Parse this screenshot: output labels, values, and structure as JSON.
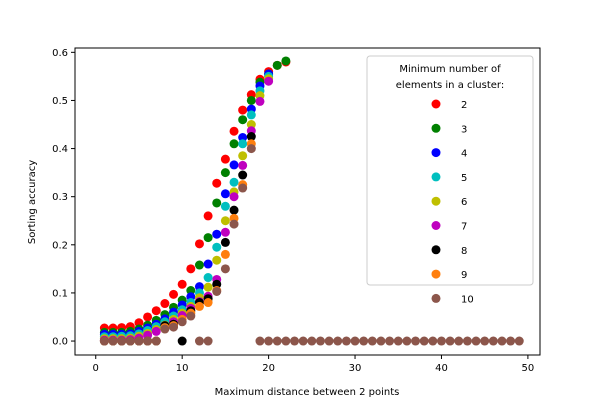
{
  "chart_data": {
    "type": "scatter",
    "title": "",
    "xlabel": "Maximum distance between 2 points",
    "ylabel": "Sorting accuracy",
    "xlim": [
      -2.4,
      51.4
    ],
    "ylim": [
      -0.029,
      0.609
    ],
    "xticks": [
      0,
      10,
      20,
      30,
      40,
      50
    ],
    "yticks": [
      0.0,
      0.1,
      0.2,
      0.3,
      0.4,
      0.5,
      0.6
    ],
    "grid": false,
    "legend": {
      "title_line1": "Minimum number of",
      "title_line2": "elements in a cluster:",
      "placement": "top-right"
    },
    "series": [
      {
        "name": "2",
        "color": "#ff0000",
        "x": [
          1,
          2,
          3,
          4,
          5,
          6,
          7,
          8,
          9,
          10,
          11,
          12,
          13,
          14,
          15,
          16,
          17,
          18,
          19,
          20,
          21,
          22
        ],
        "y": [
          0.027,
          0.027,
          0.028,
          0.03,
          0.038,
          0.05,
          0.063,
          0.078,
          0.097,
          0.118,
          0.15,
          0.202,
          0.26,
          0.328,
          0.378,
          0.436,
          0.48,
          0.512,
          0.544,
          0.56,
          0.573,
          0.58
        ]
      },
      {
        "name": "3",
        "color": "#008000",
        "x": [
          1,
          2,
          3,
          4,
          5,
          6,
          7,
          8,
          9,
          10,
          11,
          12,
          13,
          14,
          15,
          16,
          17,
          18,
          19,
          20,
          21,
          22
        ],
        "y": [
          0.018,
          0.018,
          0.018,
          0.02,
          0.025,
          0.033,
          0.043,
          0.055,
          0.07,
          0.085,
          0.105,
          0.158,
          0.215,
          0.287,
          0.35,
          0.41,
          0.46,
          0.5,
          0.538,
          0.555,
          0.573,
          0.582
        ]
      },
      {
        "name": "4",
        "color": "#0000ff",
        "x": [
          1,
          2,
          3,
          4,
          5,
          6,
          7,
          8,
          9,
          10,
          11,
          12,
          13,
          14,
          15,
          16,
          17,
          18,
          19,
          20
        ],
        "y": [
          0.014,
          0.014,
          0.014,
          0.015,
          0.02,
          0.027,
          0.035,
          0.046,
          0.06,
          0.075,
          0.092,
          0.113,
          0.16,
          0.222,
          0.306,
          0.366,
          0.423,
          0.482,
          0.53,
          0.555
        ]
      },
      {
        "name": "5",
        "color": "#00bfbf",
        "x": [
          1,
          2,
          3,
          4,
          5,
          6,
          7,
          8,
          9,
          10,
          11,
          12,
          13,
          14,
          15,
          16,
          17,
          18,
          19,
          20
        ],
        "y": [
          0.009,
          0.009,
          0.01,
          0.011,
          0.015,
          0.022,
          0.03,
          0.04,
          0.052,
          0.065,
          0.08,
          0.1,
          0.132,
          0.195,
          0.28,
          0.33,
          0.41,
          0.47,
          0.52,
          0.55
        ]
      },
      {
        "name": "6",
        "color": "#bfbf00",
        "x": [
          1,
          2,
          3,
          4,
          5,
          6,
          7,
          8,
          9,
          10,
          11,
          12,
          13,
          14,
          15,
          16,
          17,
          18,
          19,
          20
        ],
        "y": [
          0.005,
          0.005,
          0.005,
          0.006,
          0.01,
          0.016,
          0.024,
          0.033,
          0.045,
          0.058,
          0.072,
          0.09,
          0.112,
          0.168,
          0.25,
          0.31,
          0.385,
          0.45,
          0.51,
          0.545
        ]
      },
      {
        "name": "7",
        "color": "#bf00bf",
        "x": [
          1,
          2,
          3,
          4,
          5,
          6,
          7,
          8,
          9,
          10,
          11,
          12,
          13,
          14,
          15,
          16,
          17,
          18,
          19,
          20
        ],
        "y": [
          0.002,
          0.002,
          0.002,
          0.003,
          0.006,
          0.012,
          0.02,
          0.029,
          0.04,
          0.053,
          0.068,
          0.082,
          0.093,
          0.128,
          0.226,
          0.3,
          0.365,
          0.437,
          0.498,
          0.54
        ]
      },
      {
        "name": "8",
        "color": "#000000",
        "x": [
          1,
          2,
          3,
          4,
          5,
          6,
          7,
          8,
          9,
          10,
          11,
          12,
          13,
          14,
          15,
          16,
          17,
          18
        ],
        "y": [
          0.0,
          0.0,
          0.0,
          0.0,
          0.0,
          0.0,
          0.0,
          0.032,
          0.035,
          0.0,
          0.063,
          0.08,
          0.088,
          0.118,
          0.205,
          0.272,
          0.345,
          0.425
        ]
      },
      {
        "name": "9",
        "color": "#ff7f0e",
        "x": [
          1,
          2,
          3,
          4,
          5,
          6,
          7,
          8,
          9,
          10,
          11,
          12,
          13,
          14,
          15,
          16,
          17,
          18
        ],
        "y": [
          0.0,
          0.0,
          0.0,
          0.0,
          0.0,
          0.0,
          0.0,
          0.028,
          0.032,
          0.045,
          0.058,
          0.072,
          0.08,
          0.105,
          0.18,
          0.255,
          0.325,
          0.41
        ]
      },
      {
        "name": "10",
        "color": "#8c564b",
        "x": [
          1,
          2,
          3,
          4,
          5,
          6,
          7,
          8,
          9,
          10,
          11,
          12,
          13,
          14,
          15,
          16,
          17,
          18,
          19,
          20,
          21,
          22,
          23,
          24,
          25,
          26,
          27,
          28,
          29,
          30,
          31,
          32,
          33,
          34,
          35,
          36,
          37,
          38,
          39,
          40,
          41,
          42,
          43,
          44,
          45,
          46,
          47,
          48,
          49
        ],
        "y": [
          0.0,
          0.0,
          0.0,
          0.0,
          0.0,
          0.0,
          0.0,
          0.025,
          0.029,
          0.04,
          0.052,
          0.0,
          0.0,
          0.103,
          0.15,
          0.243,
          0.318,
          0.4,
          0.0,
          0.0,
          0.0,
          0.0,
          0.0,
          0.0,
          0.0,
          0.0,
          0.0,
          0.0,
          0.0,
          0.0,
          0.0,
          0.0,
          0.0,
          0.0,
          0.0,
          0.0,
          0.0,
          0.0,
          0.0,
          0.0,
          0.0,
          0.0,
          0.0,
          0.0,
          0.0,
          0.0,
          0.0,
          0.0,
          0.0
        ]
      }
    ]
  }
}
